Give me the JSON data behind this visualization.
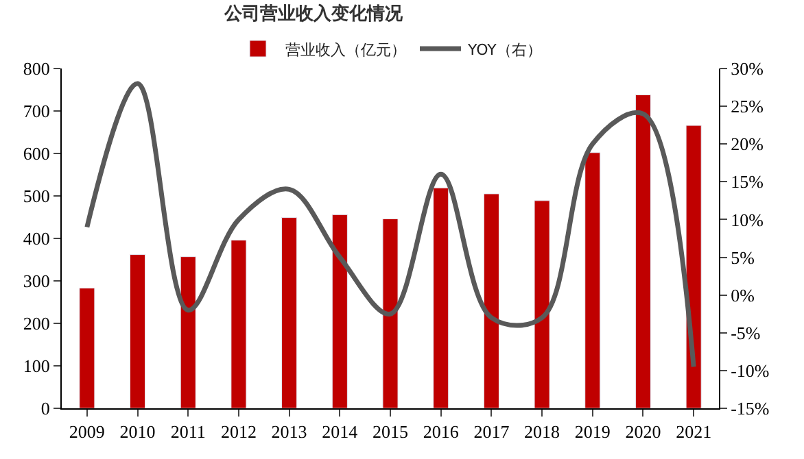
{
  "chart_data": {
    "type": "bar",
    "title": "公司营业收入变化情况",
    "categories": [
      "2009",
      "2010",
      "2011",
      "2012",
      "2013",
      "2014",
      "2015",
      "2016",
      "2017",
      "2018",
      "2019",
      "2020",
      "2021"
    ],
    "series": [
      {
        "name": "营业收入（亿元）",
        "color": "#c00000",
        "values": [
          283,
          362,
          357,
          396,
          449,
          456,
          446,
          519,
          505,
          489,
          602,
          738,
          666
        ]
      },
      {
        "name": "YOY（右）",
        "type": "line",
        "axis": "y2",
        "color": "#595959",
        "values": [
          9,
          28,
          -2,
          10,
          14,
          5,
          -2.5,
          16,
          -3,
          -3,
          20,
          24,
          -9.5
        ]
      }
    ],
    "ylim": [
      0,
      800
    ],
    "yticks": [
      0,
      100,
      200,
      300,
      400,
      500,
      600,
      700,
      800
    ],
    "y2lim": [
      -15,
      30
    ],
    "y2ticks": [
      {
        "value": -15,
        "label": "-15%"
      },
      {
        "value": -10,
        "label": "-10%"
      },
      {
        "value": -5,
        "label": "-5%"
      },
      {
        "value": 0,
        "label": "0%"
      },
      {
        "value": 5,
        "label": "5%"
      },
      {
        "value": 10,
        "label": "10%"
      },
      {
        "value": 15,
        "label": "15%"
      },
      {
        "value": 20,
        "label": "20%"
      },
      {
        "value": 25,
        "label": "25%"
      },
      {
        "value": 30,
        "label": "30%"
      }
    ],
    "legend": "top",
    "marker": "none",
    "line_style": "solid"
  }
}
